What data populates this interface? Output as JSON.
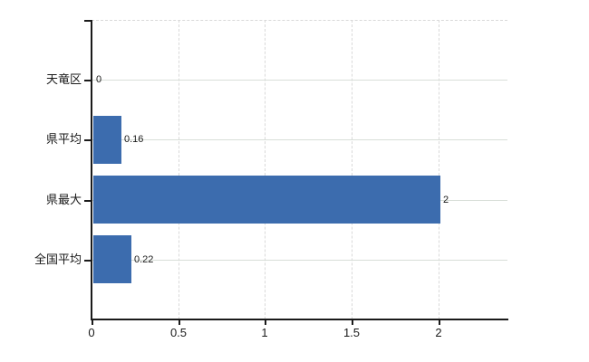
{
  "chart_data": {
    "type": "bar",
    "orientation": "horizontal",
    "title": "",
    "xlabel": "",
    "ylabel": "",
    "categories": [
      "天竜区",
      "県平均",
      "県最大",
      "全国平均"
    ],
    "values": [
      0,
      0.16,
      2,
      0.22
    ],
    "value_labels": [
      "0",
      "0.16",
      "2",
      "0.22"
    ],
    "x_ticks": [
      0,
      0.5,
      1,
      1.5,
      2
    ],
    "x_tick_labels": [
      "0",
      "0.5",
      "1",
      "1.5",
      "2"
    ],
    "xlim": [
      0,
      2.4
    ],
    "grid": true,
    "legend": false,
    "bar_color": "#3c6cae",
    "axis_color": "#1a1a1a",
    "vertical_gridline_color": "#d9d9d9",
    "horizontal_gridline_color": "#d8ded8",
    "background_color": "#ffffff"
  }
}
